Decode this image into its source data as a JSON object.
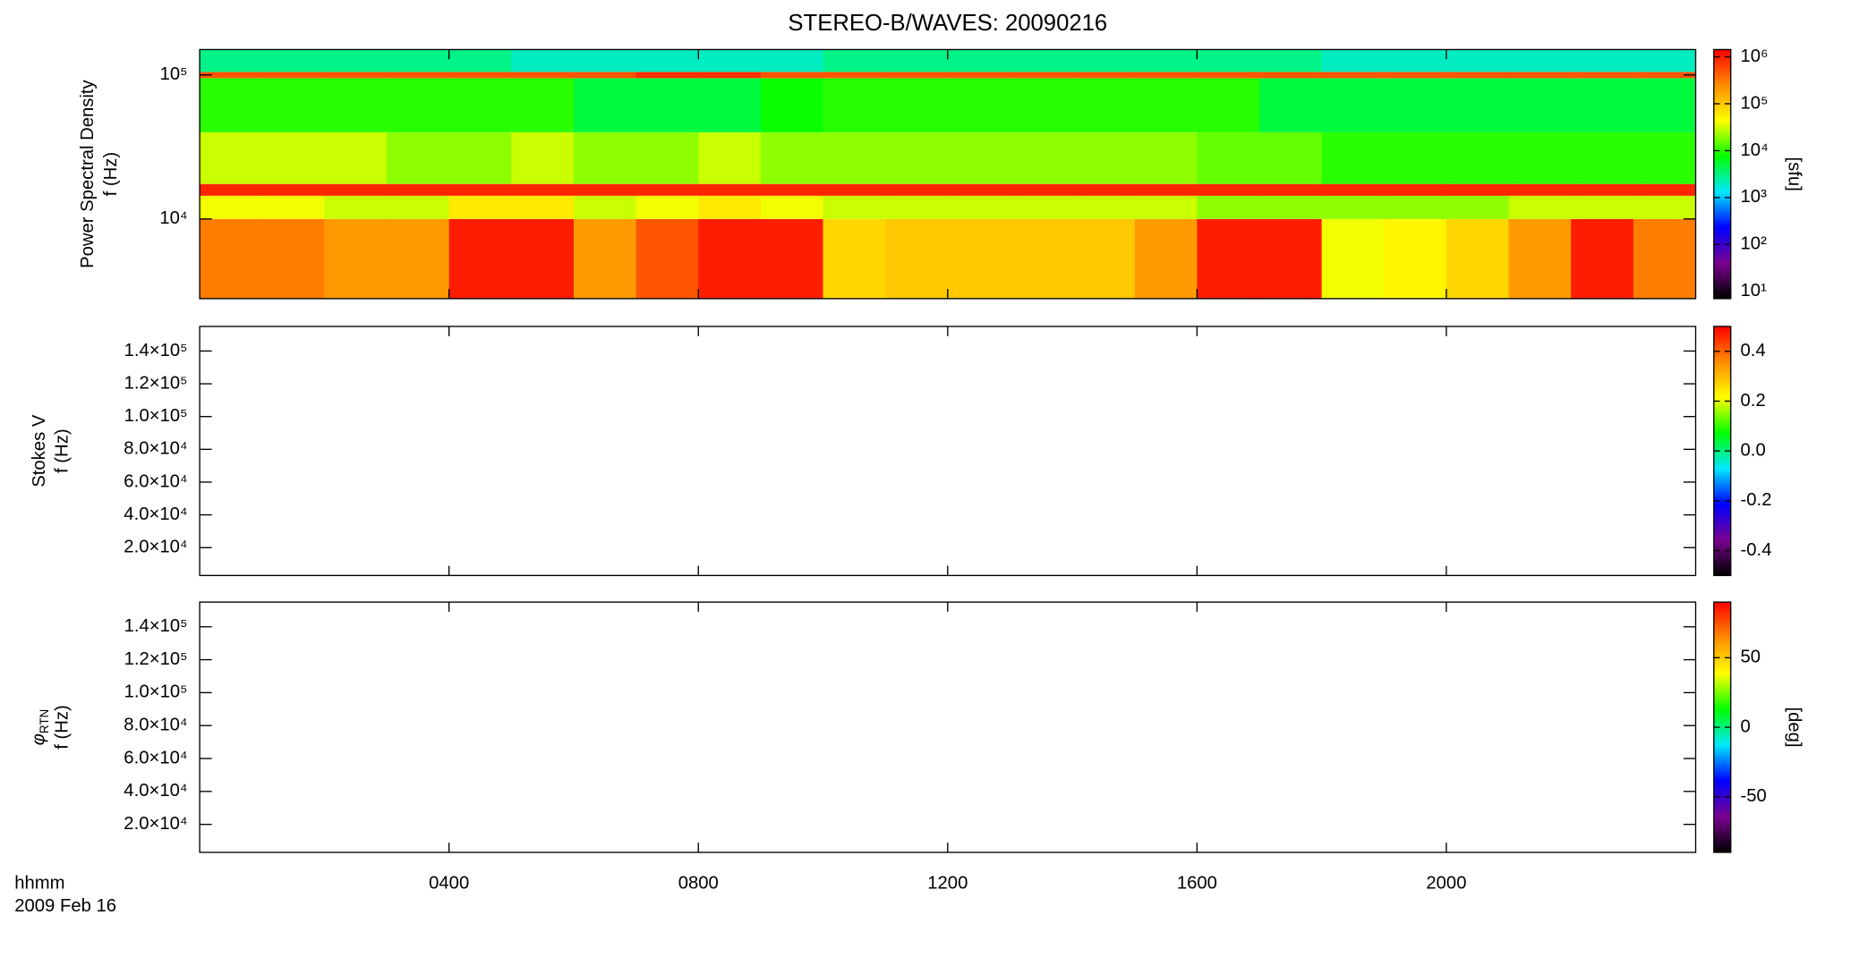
{
  "chart_data": [
    {
      "type": "heatmap",
      "title": "STEREO-B/WAVES: 20090216",
      "ylabel": [
        "Power Spectral Density",
        "f (Hz)"
      ],
      "yscale": "log",
      "ylim": [
        2800,
        150000
      ],
      "yticks": [
        {
          "value": 10000,
          "label": "10⁴"
        },
        {
          "value": 100000,
          "label": "10⁵"
        }
      ],
      "colormap": [
        "#000000",
        "#7a0090",
        "#0000ff",
        "#00e8ff",
        "#00ff00",
        "#ffff00",
        "#ff8c00",
        "#ff0000"
      ],
      "x_bins": [
        0,
        1,
        2,
        3,
        4,
        5,
        6,
        7,
        8,
        9,
        10,
        11,
        12,
        13,
        14,
        15,
        16,
        17,
        18,
        19,
        20,
        21,
        22,
        23,
        24
      ],
      "y_bins": [
        2800,
        10000,
        14500,
        17500,
        40000,
        95000,
        105000,
        150000
      ],
      "z": [
        [
          300000,
          300000,
          200000,
          200000,
          1000000,
          1000000,
          200000,
          500000,
          1000000,
          1000000,
          80000,
          100000,
          100000,
          100000,
          100000,
          200000,
          1000000,
          1000000,
          40000,
          50000,
          80000,
          200000,
          1000000,
          300000
        ],
        [
          40000,
          40000,
          30000,
          30000,
          60000,
          60000,
          30000,
          40000,
          60000,
          40000,
          30000,
          30000,
          30000,
          30000,
          30000,
          30000,
          20000,
          20000,
          20000,
          20000,
          20000,
          30000,
          30000,
          30000
        ],
        [
          900000,
          900000,
          900000,
          900000,
          900000,
          900000,
          900000,
          900000,
          900000,
          900000,
          900000,
          900000,
          900000,
          900000,
          900000,
          900000,
          900000,
          900000,
          900000,
          900000,
          900000,
          900000,
          900000,
          900000
        ],
        [
          30000,
          30000,
          30000,
          20000,
          20000,
          30000,
          20000,
          20000,
          30000,
          20000,
          20000,
          20000,
          20000,
          20000,
          20000,
          20000,
          15000,
          15000,
          10000,
          10000,
          10000,
          10000,
          10000,
          10000
        ],
        [
          10000,
          10000,
          10000,
          10000,
          10000,
          10000,
          5000,
          5000,
          5000,
          8000,
          10000,
          10000,
          10000,
          10000,
          10000,
          10000,
          10000,
          5000,
          5000,
          5000,
          5000,
          5000,
          5000,
          5000
        ],
        [
          500000,
          500000,
          500000,
          500000,
          500000,
          500000,
          500000,
          800000,
          800000,
          500000,
          500000,
          500000,
          500000,
          500000,
          500000,
          500000,
          500000,
          500000,
          500000,
          500000,
          500000,
          500000,
          500000,
          500000
        ],
        [
          3000,
          3000,
          3000,
          3000,
          3000,
          2000,
          2000,
          2000,
          2000,
          2000,
          3000,
          3000,
          3000,
          3000,
          3000,
          3000,
          3000,
          3000,
          2000,
          2000,
          2000,
          2000,
          2000,
          2000
        ]
      ],
      "colorbar": {
        "scale": "log",
        "lim": [
          7,
          1430000
        ],
        "ticks": [
          {
            "value": 10,
            "label": "10¹"
          },
          {
            "value": 100,
            "label": "10²"
          },
          {
            "value": 1000,
            "label": "10³"
          },
          {
            "value": 10000,
            "label": "10⁴"
          },
          {
            "value": 100000,
            "label": "10⁵"
          },
          {
            "value": 1000000,
            "label": "10⁶"
          }
        ],
        "label": "[sfu]"
      }
    },
    {
      "type": "heatmap",
      "ylabel": [
        "Stokes V",
        "f (Hz)"
      ],
      "ylim": [
        3000,
        155000
      ],
      "yticks": [
        {
          "value": 20000,
          "label": "2.0×10⁴"
        },
        {
          "value": 40000,
          "label": "4.0×10⁴"
        },
        {
          "value": 60000,
          "label": "6.0×10⁴"
        },
        {
          "value": 80000,
          "label": "8.0×10⁴"
        },
        {
          "value": 100000,
          "label": "1.0×10⁵"
        },
        {
          "value": 120000,
          "label": "1.2×10⁵"
        },
        {
          "value": 140000,
          "label": "1.4×10⁵"
        }
      ],
      "colorbar": {
        "scale": "linear",
        "lim": [
          -0.5,
          0.5
        ],
        "ticks": [
          -0.4,
          -0.2,
          {
            "value": 0,
            "label": "0.0"
          },
          0.2,
          0.4
        ]
      }
    },
    {
      "type": "heatmap",
      "ylabel_symbol": "φ",
      "ylabel_subscript": "RTN",
      "ylabel": [
        "f (Hz)"
      ],
      "ylim": [
        3000,
        155000
      ],
      "yticks": [
        {
          "value": 20000,
          "label": "2.0×10⁴"
        },
        {
          "value": 40000,
          "label": "4.0×10⁴"
        },
        {
          "value": 60000,
          "label": "6.0×10⁴"
        },
        {
          "value": 80000,
          "label": "8.0×10⁴"
        },
        {
          "value": 100000,
          "label": "1.0×10⁵"
        },
        {
          "value": 120000,
          "label": "1.2×10⁵"
        },
        {
          "value": 140000,
          "label": "1.4×10⁵"
        }
      ],
      "colorbar": {
        "scale": "linear",
        "lim": [
          -90,
          90
        ],
        "ticks": [
          -50,
          0,
          50
        ],
        "label": "[deg]"
      },
      "xlim": [
        0,
        24
      ],
      "xticks": [
        {
          "value": 4,
          "label": "0400"
        },
        {
          "value": 8,
          "label": "0800"
        },
        {
          "value": 12,
          "label": "1200"
        },
        {
          "value": 16,
          "label": "1600"
        },
        {
          "value": 20,
          "label": "2000"
        }
      ],
      "xlabel": [
        "hhmm",
        "2009 Feb 16"
      ]
    }
  ]
}
